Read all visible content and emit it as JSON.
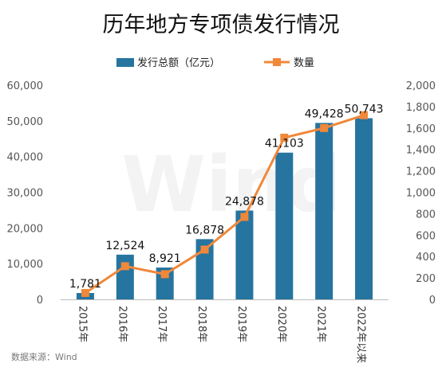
{
  "chart_data": {
    "type": "bar",
    "title": "历年地方专项债发行情况",
    "categories": [
      "2015年",
      "2016年",
      "2017年",
      "2018年",
      "2019年",
      "2020年",
      "2021年",
      "2022年以来"
    ],
    "series": [
      {
        "name": "发行总额（亿元）",
        "type": "bar",
        "axis": "left",
        "color": "#2674a0",
        "values": [
          1781,
          12524,
          8921,
          16878,
          24878,
          41103,
          49428,
          50743
        ],
        "labels": [
          "1,781",
          "12,524",
          "8,921",
          "16,878",
          "24,878",
          "41,103",
          "49,428",
          "50,743"
        ]
      },
      {
        "name": "数量",
        "type": "line",
        "axis": "right",
        "color": "#f0883a",
        "values": [
          60,
          310,
          235,
          465,
          770,
          1510,
          1600,
          1720
        ]
      }
    ],
    "yleft": {
      "lim": [
        0,
        60000
      ],
      "ticks": [
        "0",
        "10,000",
        "20,000",
        "30,000",
        "40,000",
        "50,000",
        "60,000"
      ]
    },
    "yright": {
      "lim": [
        0,
        2000
      ],
      "ticks": [
        "0",
        "200",
        "400",
        "600",
        "800",
        "1,000",
        "1,200",
        "1,400",
        "1,600",
        "1,800",
        "2,000"
      ]
    },
    "legend": "top-center",
    "grid": false
  },
  "watermark": "Wind",
  "source": "数据来源：Wind"
}
